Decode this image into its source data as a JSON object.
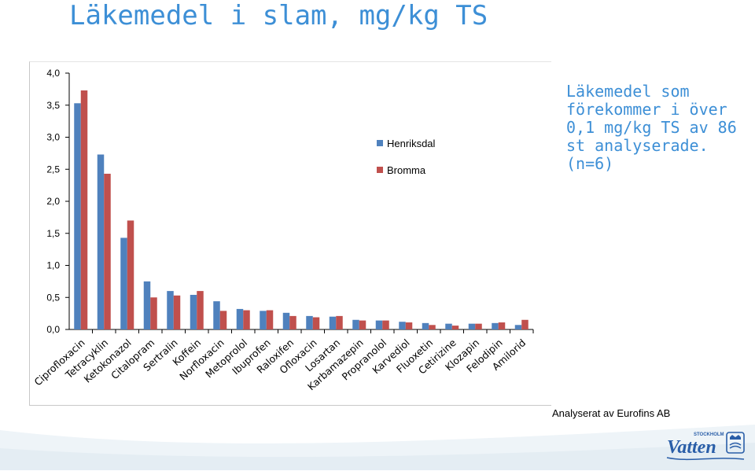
{
  "title": "Läkemedel i slam, mg/kg TS",
  "side_note": "Läkemedel som förekommer i över 0,1 mg/kg TS av 86 st analyserade. (n=6)",
  "credit": "Analyserat av Eurofins AB",
  "logo": {
    "small_text": "STOCKHOLM",
    "brand_text": "Vatten"
  },
  "colors": {
    "title": "#3d8fd6",
    "series_1": "#4f81bd",
    "series_2": "#c0504d"
  },
  "chart_data": {
    "type": "bar",
    "categories": [
      "Ciprofloxacin",
      "Tetracyklin",
      "Ketokonazol",
      "Citalopram",
      "Sertralin",
      "Koffein",
      "Norfloxacin",
      "Metoprolol",
      "Ibuprofen",
      "Raloxifen",
      "Ofloxacin",
      "Losartan",
      "Karbamazepin",
      "Propranolol",
      "Karvediol",
      "Fluoxetin",
      "Cetirizine",
      "Klozapin",
      "Felodipin",
      "Amilorid"
    ],
    "series": [
      {
        "name": "Henriksdal",
        "values": [
          3.53,
          2.73,
          1.43,
          0.75,
          0.6,
          0.54,
          0.44,
          0.32,
          0.29,
          0.26,
          0.21,
          0.2,
          0.15,
          0.14,
          0.12,
          0.1,
          0.09,
          0.09,
          0.1,
          0.07
        ]
      },
      {
        "name": "Bromma",
        "values": [
          3.73,
          2.43,
          1.7,
          0.5,
          0.53,
          0.6,
          0.29,
          0.3,
          0.3,
          0.21,
          0.19,
          0.21,
          0.14,
          0.14,
          0.11,
          0.07,
          0.06,
          0.09,
          0.11,
          0.15
        ]
      }
    ],
    "ylim": [
      0,
      4
    ],
    "yticks": [
      "0,0",
      "0,5",
      "1,0",
      "1,5",
      "2,0",
      "2,5",
      "3,0",
      "3,5",
      "4,0"
    ],
    "legend": "top-right"
  }
}
